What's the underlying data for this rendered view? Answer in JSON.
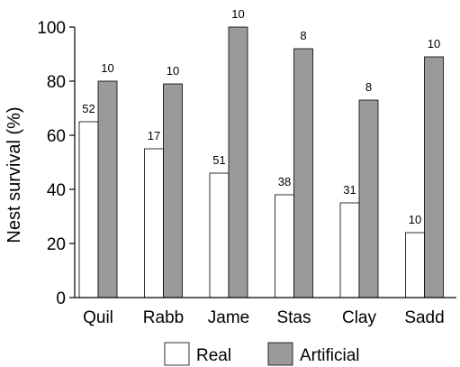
{
  "chart_data": {
    "type": "bar",
    "title": "",
    "xlabel": "",
    "ylabel": "Nest survival (%)",
    "ylim": [
      0,
      100
    ],
    "yticks": [
      0,
      20,
      40,
      60,
      80,
      100
    ],
    "grid": false,
    "legend_position": "bottom",
    "categories": [
      "Quil",
      "Rabb",
      "Jame",
      "Stas",
      "Clay",
      "Sadd"
    ],
    "series": [
      {
        "name": "Real",
        "color": "#ffffff",
        "values": [
          65,
          55,
          46,
          38,
          35,
          24
        ],
        "labels": [
          "52",
          "17",
          "51",
          "38",
          "31",
          "10"
        ]
      },
      {
        "name": "Artificial",
        "color": "#9a9a9a",
        "values": [
          80,
          79,
          100,
          92,
          73,
          89
        ],
        "labels": [
          "10",
          "10",
          "10",
          "8",
          "8",
          "10"
        ]
      }
    ]
  }
}
